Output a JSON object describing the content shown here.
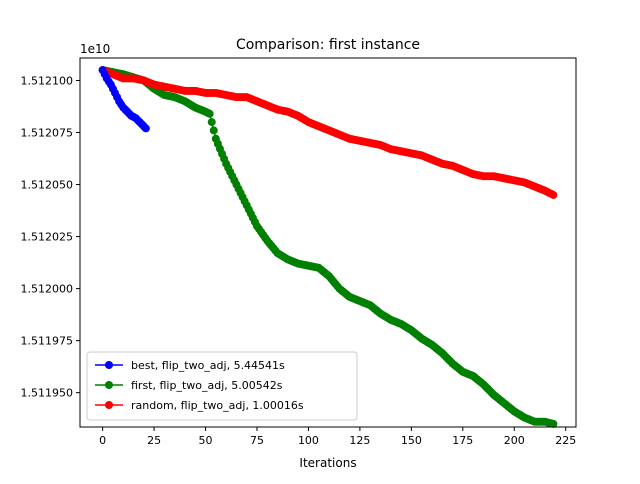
{
  "chart_data": {
    "type": "line",
    "title": "Comparison: first instance",
    "xlabel": "Iterations",
    "ylabel": "",
    "offset_label": "1e10",
    "xlim": [
      -11,
      230
    ],
    "ylim": [
      15119335000,
      15121108000
    ],
    "x_ticks": [
      0,
      25,
      50,
      75,
      100,
      125,
      150,
      175,
      200,
      225
    ],
    "x_tick_labels": [
      "0",
      "25",
      "50",
      "75",
      "100",
      "125",
      "150",
      "175",
      "200",
      "225"
    ],
    "y_ticks": [
      15119500000,
      15119750000,
      15120000000,
      15120250000,
      15120500000,
      15120750000,
      15121000000
    ],
    "y_tick_labels": [
      "1.511950",
      "1.511975",
      "1.512000",
      "1.512025",
      "1.512050",
      "1.512075",
      "1.512100"
    ],
    "legend_position": "lower-left",
    "grid": false,
    "marker": "circle",
    "series": [
      {
        "name": "best, flip_two_adj, 5.44541s",
        "color": "#0000ff",
        "x": [
          0,
          2,
          4,
          6,
          8,
          10,
          12,
          14,
          16,
          18,
          20,
          21
        ],
        "y": [
          15121050000,
          15121010000,
          15120980000,
          15120940000,
          15120900000,
          15120870000,
          15120850000,
          15120830000,
          15120820000,
          15120800000,
          15120780000,
          15120770000
        ]
      },
      {
        "name": "first, flip_two_adj, 5.00542s",
        "color": "#008000",
        "x": [
          0,
          10,
          20,
          25,
          30,
          35,
          40,
          45,
          50,
          52,
          55,
          60,
          65,
          70,
          75,
          80,
          85,
          90,
          95,
          100,
          105,
          110,
          115,
          120,
          125,
          130,
          135,
          140,
          145,
          150,
          155,
          160,
          165,
          170,
          175,
          180,
          185,
          190,
          195,
          200,
          205,
          210,
          215,
          219
        ],
        "y": [
          15121050000,
          15121030000,
          15121000000,
          15120960000,
          15120930000,
          15120920000,
          15120900000,
          15120870000,
          15120850000,
          15120840000,
          15120720000,
          15120600000,
          15120500000,
          15120400000,
          15120300000,
          15120230000,
          15120170000,
          15120140000,
          15120120000,
          15120110000,
          15120100000,
          15120060000,
          15120000000,
          15119960000,
          15119940000,
          15119920000,
          15119880000,
          15119850000,
          15119830000,
          15119800000,
          15119760000,
          15119730000,
          15119690000,
          15119640000,
          15119600000,
          15119580000,
          15119540000,
          15119490000,
          15119450000,
          15119410000,
          15119380000,
          15119360000,
          15119360000,
          15119350000
        ]
      },
      {
        "name": "random, flip_two_adj, 1.00016s",
        "color": "#ff0000",
        "x": [
          0,
          5,
          10,
          15,
          20,
          25,
          30,
          35,
          40,
          45,
          50,
          55,
          60,
          65,
          70,
          75,
          80,
          85,
          90,
          95,
          100,
          105,
          110,
          115,
          120,
          125,
          130,
          135,
          140,
          145,
          150,
          155,
          160,
          165,
          170,
          175,
          180,
          185,
          190,
          195,
          200,
          205,
          210,
          215,
          219
        ],
        "y": [
          15121050000,
          15121030000,
          15121010000,
          15121010000,
          15121000000,
          15120980000,
          15120970000,
          15120960000,
          15120950000,
          15120950000,
          15120940000,
          15120940000,
          15120930000,
          15120920000,
          15120920000,
          15120900000,
          15120880000,
          15120860000,
          15120850000,
          15120830000,
          15120800000,
          15120780000,
          15120760000,
          15120740000,
          15120720000,
          15120710000,
          15120700000,
          15120690000,
          15120670000,
          15120660000,
          15120650000,
          15120640000,
          15120620000,
          15120600000,
          15120590000,
          15120570000,
          15120550000,
          15120540000,
          15120540000,
          15120530000,
          15120520000,
          15120510000,
          15120490000,
          15120470000,
          15120450000
        ]
      }
    ]
  }
}
